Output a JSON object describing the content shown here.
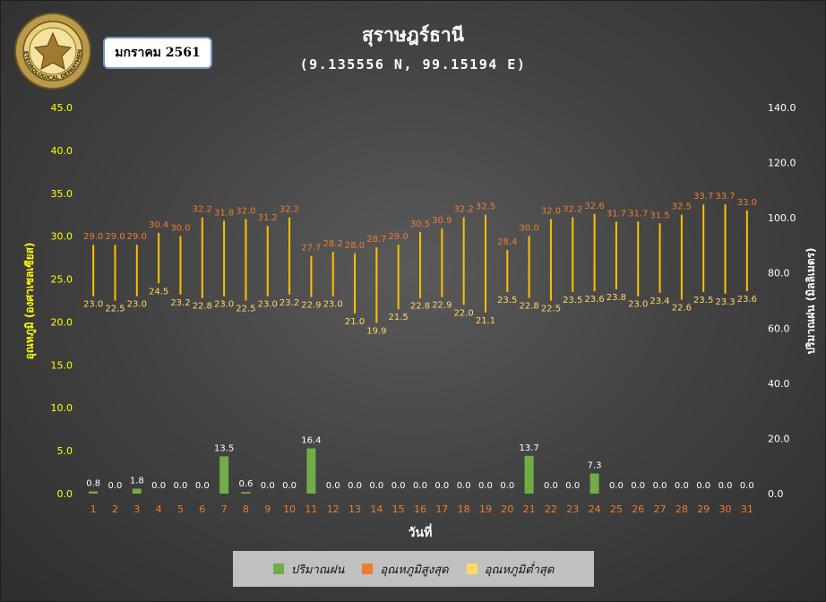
{
  "header": {
    "month_label": "มกราคม 2561",
    "title": "สุราษฎร์ธานี",
    "subtitle": "(9.135556 N, 99.15194 E)",
    "logo_text": "METEOROLOGICAL DEPARTMENT"
  },
  "colors": {
    "rain": "#70ad47",
    "tmax": "#ed7d31",
    "tmin": "#ffd966",
    "range_line": "#ffc000",
    "left_axis": "#ffff00",
    "right_axis": "#ffffff",
    "x_ticks": "#ed7d31"
  },
  "legend": {
    "rain": "ปริมาณฝน",
    "tmax": "อุณหภูมิสูงสุด",
    "tmin": "อุณหภูมิต่ำสุด"
  },
  "chart_data": {
    "type": "bar",
    "xlabel": "วันที่",
    "ylabel_left": "อุณหภูมิ (องศาเซลเซียส)",
    "ylabel_right": "ปริมาณฝน (มิลลิเมตร)",
    "ylim_left": [
      0,
      45
    ],
    "ylim_right": [
      0,
      140
    ],
    "yticks_left": [
      "0.0",
      "5.0",
      "10.0",
      "15.0",
      "20.0",
      "25.0",
      "30.0",
      "35.0",
      "40.0",
      "45.0"
    ],
    "yticks_right": [
      "0.0",
      "20.0",
      "40.0",
      "60.0",
      "80.0",
      "100.0",
      "120.0",
      "140.0"
    ],
    "x": [
      1,
      2,
      3,
      4,
      5,
      6,
      7,
      8,
      9,
      10,
      11,
      12,
      13,
      14,
      15,
      16,
      17,
      18,
      19,
      20,
      21,
      22,
      23,
      24,
      25,
      26,
      27,
      28,
      29,
      30,
      31
    ],
    "series": [
      {
        "name": "ปริมาณฝน",
        "axis": "right",
        "values": [
          0.8,
          0.0,
          1.8,
          0.0,
          0.0,
          0.0,
          13.5,
          0.6,
          0.0,
          0.0,
          16.4,
          0.0,
          0.0,
          0.0,
          0.0,
          0.0,
          0.0,
          0.0,
          0.0,
          0.0,
          13.7,
          0.0,
          0.0,
          7.3,
          0.0,
          0.0,
          0.0,
          0.0,
          0.0,
          0.0,
          0.0
        ],
        "labels": [
          "0.8",
          "0.0",
          "1.8",
          "0.0",
          "0.0",
          "0.0",
          "13.5",
          "0.6",
          "0.0",
          "0.0",
          "16.4",
          "0.0",
          "0.0",
          "0.0",
          "0.0",
          "0.0",
          "0.0",
          "0.0",
          "0.0",
          "0.0",
          "13.7",
          "0.0",
          "0.0",
          "7.3",
          "0.0",
          "0.0",
          "0.0",
          "0.0",
          "0.0",
          "0.0",
          "0.0"
        ]
      },
      {
        "name": "อุณหภูมิสูงสุด",
        "axis": "left",
        "values": [
          29.0,
          29.0,
          29.0,
          30.4,
          30.0,
          32.2,
          31.8,
          32.0,
          31.2,
          32.2,
          27.7,
          28.2,
          28.0,
          28.7,
          29.0,
          30.5,
          30.9,
          32.2,
          32.5,
          28.4,
          30.0,
          32.0,
          32.2,
          32.6,
          31.7,
          31.7,
          31.5,
          32.5,
          33.7,
          33.7,
          33.0
        ],
        "labels": [
          "29.0",
          "29.0",
          "29.0",
          "30.4",
          "30.0",
          "32.2",
          "31.8",
          "32.0",
          "31.2",
          "32.2",
          "27.7",
          "28.2",
          "28.0",
          "28.7",
          "29.0",
          "30.5",
          "30.9",
          "32.2",
          "32.5",
          "28.4",
          "30.0",
          "32.0",
          "32.2",
          "32.6",
          "31.7",
          "31.7",
          "31.5",
          "32.5",
          "33.7",
          "33.7",
          "33.0"
        ]
      },
      {
        "name": "อุณหภูมิต่ำสุด",
        "axis": "left",
        "values": [
          23.0,
          22.5,
          23.0,
          24.5,
          23.2,
          22.8,
          23.0,
          22.5,
          23.0,
          23.2,
          22.9,
          23.0,
          21.0,
          19.9,
          21.5,
          22.8,
          22.9,
          22.0,
          21.1,
          23.5,
          22.8,
          22.5,
          23.5,
          23.6,
          23.8,
          23.0,
          23.4,
          22.6,
          23.5,
          23.3,
          23.6
        ],
        "labels": [
          "23.0",
          "22.5",
          "23.0",
          "24.5",
          "23.2",
          "22.8",
          "23.0",
          "22.5",
          "23.0",
          "23.2",
          "22.9",
          "23.0",
          "21.0",
          "19.9",
          "21.5",
          "22.8",
          "22.9",
          "22.0",
          "21.1",
          "23.5",
          "22.8",
          "22.5",
          "23.5",
          "23.6",
          "23.8",
          "23.0",
          "23.4",
          "22.6",
          "23.5",
          "23.3",
          "23.6"
        ]
      }
    ]
  }
}
